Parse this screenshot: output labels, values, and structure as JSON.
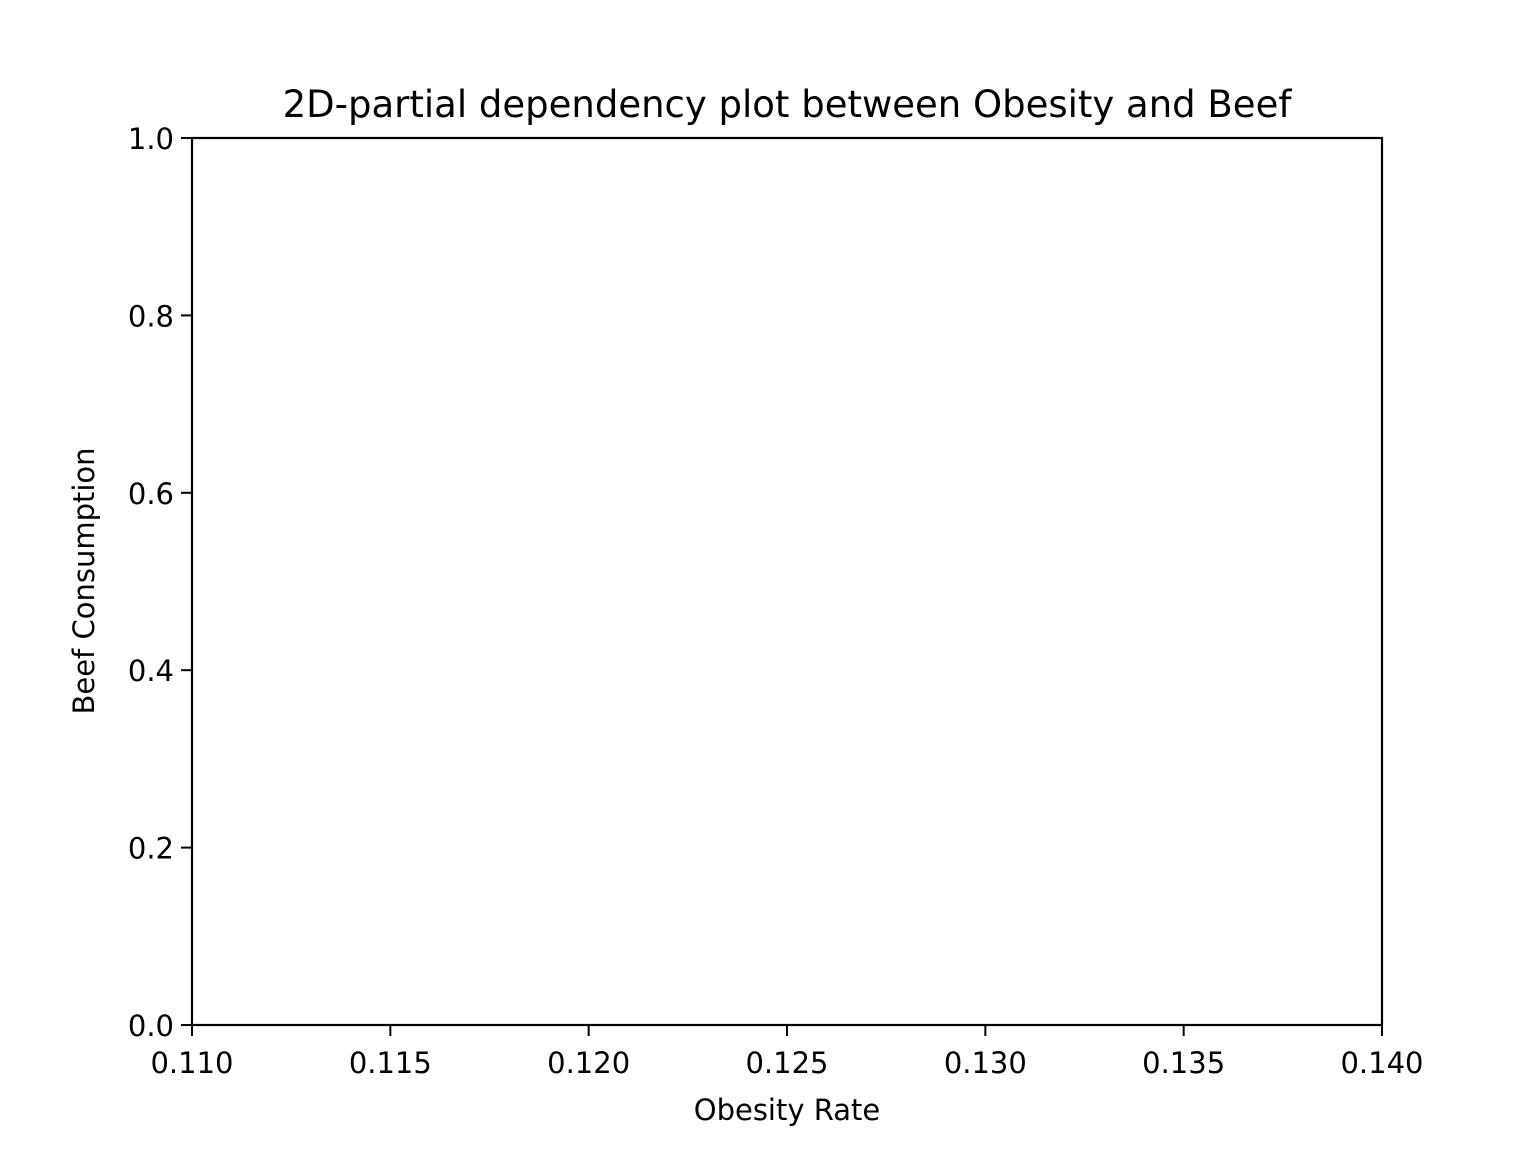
{
  "chart_data": {
    "type": "heatmap",
    "title": "2D-partial dependency plot between Obesity and Beef",
    "xlabel": "Obesity Rate",
    "ylabel": "Beef Consumption",
    "xlim": [
      0.11,
      0.14
    ],
    "ylim": [
      0.0,
      1.0
    ],
    "x_ticks": [
      "0.110",
      "0.115",
      "0.120",
      "0.125",
      "0.130",
      "0.135",
      "0.140"
    ],
    "y_ticks": [
      "0.0",
      "0.2",
      "0.4",
      "0.6",
      "0.8",
      "1.0"
    ],
    "grid": false,
    "series": [],
    "colors": {
      "axes": "#000000",
      "background": "#ffffff"
    }
  }
}
